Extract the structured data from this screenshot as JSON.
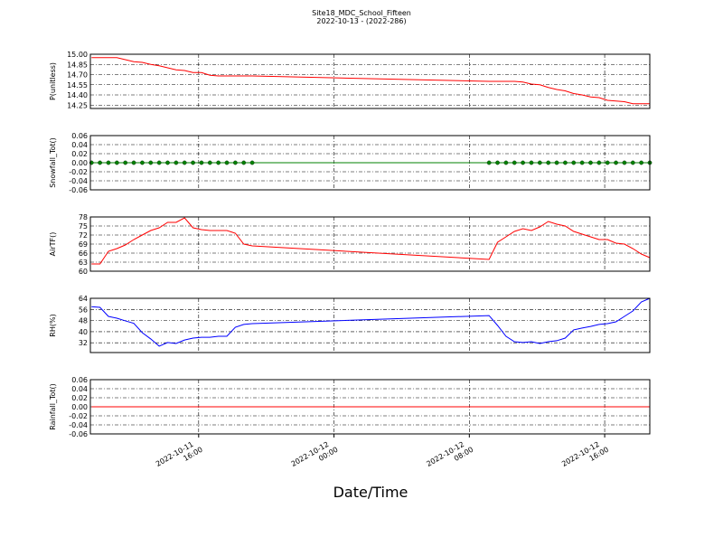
{
  "chart_data": {
    "type": "line",
    "title": "Site18_MDC_School_Fifteen",
    "subtitle": "2022-10-13 - (2022-286)",
    "xlabel": "Date/Time",
    "grid": true,
    "xlim": [
      "2022-10-11 09:36",
      "2022-10-12 18:40"
    ],
    "xticks": [
      {
        "value": "2022-10-11 16:00",
        "label": [
          "2022-10-11",
          "16:00"
        ]
      },
      {
        "value": "2022-10-12 00:00",
        "label": [
          "2022-10-12",
          "00:00"
        ]
      },
      {
        "value": "2022-10-12 08:00",
        "label": [
          "2022-10-12",
          "08:00"
        ]
      },
      {
        "value": "2022-10-12 16:00",
        "label": [
          "2022-10-12",
          "16:00"
        ]
      }
    ],
    "x": [
      "2022-10-11 09:40",
      "2022-10-11 10:10",
      "2022-10-11 10:40",
      "2022-10-11 11:10",
      "2022-10-11 11:40",
      "2022-10-11 12:10",
      "2022-10-11 12:40",
      "2022-10-11 13:10",
      "2022-10-11 13:40",
      "2022-10-11 14:10",
      "2022-10-11 14:40",
      "2022-10-11 15:10",
      "2022-10-11 15:40",
      "2022-10-11 16:10",
      "2022-10-11 16:40",
      "2022-10-11 17:10",
      "2022-10-11 17:40",
      "2022-10-11 18:10",
      "2022-10-11 18:40",
      "2022-10-11 19:10",
      "2022-10-12 09:10",
      "2022-10-12 09:40",
      "2022-10-12 10:10",
      "2022-10-12 10:40",
      "2022-10-12 11:10",
      "2022-10-12 11:40",
      "2022-10-12 12:10",
      "2022-10-12 12:40",
      "2022-10-12 13:10",
      "2022-10-12 13:40",
      "2022-10-12 14:10",
      "2022-10-12 14:40",
      "2022-10-12 15:10",
      "2022-10-12 15:40",
      "2022-10-12 16:10",
      "2022-10-12 16:40",
      "2022-10-12 17:10",
      "2022-10-12 17:40",
      "2022-10-12 18:10",
      "2022-10-12 18:40"
    ],
    "panels": [
      {
        "ylabel": "P(unitless)",
        "ylim": [
          14.2,
          15.0
        ],
        "yticks": [
          14.25,
          {
            "value": 14.4,
            "label": "14.40"
          },
          14.55,
          {
            "value": 14.7,
            "label": "14.70"
          },
          14.85,
          {
            "value": 15,
            "label": "15.00"
          }
        ],
        "series": [
          {
            "color": "#ff0000",
            "values": [
              14.95,
              14.95,
              14.95,
              14.95,
              14.92,
              14.89,
              14.88,
              14.85,
              14.83,
              14.8,
              14.77,
              14.76,
              14.73,
              14.73,
              14.69,
              14.68,
              14.68,
              14.68,
              14.68,
              14.68,
              14.6,
              14.6,
              14.6,
              14.6,
              14.59,
              14.56,
              14.55,
              14.51,
              14.48,
              14.46,
              14.42,
              14.4,
              14.37,
              14.36,
              14.32,
              14.31,
              14.3,
              14.27,
              14.27,
              14.27
            ]
          }
        ]
      },
      {
        "ylabel": "Snowfall_Tot()",
        "ylim": [
          -0.06,
          0.06
        ],
        "yticks": [
          -0.06,
          -0.04,
          -0.02,
          {
            "value": 0,
            "label": "0.00"
          },
          0.02,
          0.04,
          0.06
        ],
        "series": [
          {
            "color": "#008000",
            "marker": "o",
            "values": [
              0,
              0,
              0,
              0,
              0,
              0,
              0,
              0,
              0,
              0,
              0,
              0,
              0,
              0,
              0,
              0,
              0,
              0,
              0,
              0,
              0,
              0,
              0,
              0,
              0,
              0,
              0,
              0,
              0,
              0,
              0,
              0,
              0,
              0,
              0,
              0,
              0,
              0,
              0,
              0
            ]
          }
        ]
      },
      {
        "ylabel": "AirTF()",
        "ylim": [
          60,
          78
        ],
        "yticks": [
          60,
          63,
          66,
          69,
          72,
          75,
          78
        ],
        "series": [
          {
            "color": "#ff0000",
            "values": [
              62.4,
              62.4,
              66.6,
              67.5,
              68.7,
              70.5,
              72.0,
              73.5,
              74.4,
              76.2,
              76.2,
              77.7,
              74.4,
              73.8,
              73.5,
              73.5,
              73.5,
              72.6,
              69.0,
              68.4,
              63.9,
              69.6,
              71.4,
              73.2,
              74.1,
              73.5,
              74.7,
              76.5,
              75.6,
              75.0,
              73.2,
              72.3,
              71.4,
              70.5,
              70.5,
              69.3,
              69.0,
              67.5,
              65.7,
              64.5
            ]
          }
        ]
      },
      {
        "ylabel": "RH(%)",
        "ylim": [
          25,
          64
        ],
        "yticks": [
          32,
          40,
          48,
          56,
          64
        ],
        "series": [
          {
            "color": "#0000ff",
            "values": [
              58.0,
              57.5,
              51.0,
              49.7,
              47.8,
              46.0,
              39.3,
              34.8,
              29.6,
              32.2,
              31.5,
              34.0,
              35.4,
              36.0,
              36.0,
              36.7,
              36.7,
              43.2,
              45.2,
              45.8,
              51.6,
              44.5,
              36.7,
              32.8,
              32.2,
              32.8,
              31.5,
              32.8,
              33.5,
              35.4,
              41.3,
              42.6,
              43.8,
              45.2,
              45.8,
              47.1,
              51.0,
              54.9,
              61.4,
              64.0
            ]
          }
        ]
      },
      {
        "ylabel": "Rainfall_Tot()",
        "ylim": [
          -0.06,
          0.06
        ],
        "yticks": [
          -0.06,
          -0.04,
          -0.02,
          {
            "value": 0,
            "label": "0.00"
          },
          0.02,
          0.04,
          0.06
        ],
        "series": [
          {
            "color": "#ff0000",
            "values": [
              0,
              0,
              0,
              0,
              0,
              0,
              0,
              0,
              0,
              0,
              0,
              0,
              0,
              0,
              0,
              0,
              0,
              0,
              0,
              0,
              0,
              0,
              0,
              0,
              0,
              0,
              0,
              0,
              0,
              0,
              0,
              0,
              0,
              0,
              0,
              0,
              0,
              0,
              0,
              0
            ]
          }
        ]
      }
    ]
  }
}
